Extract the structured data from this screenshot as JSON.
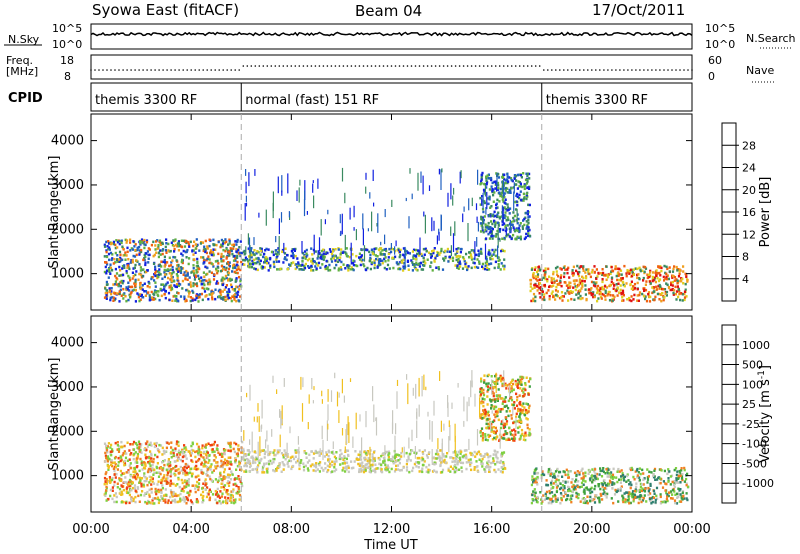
{
  "header": {
    "left": "Syowa East (fitACF)",
    "center": "Beam 04",
    "right": "17/Oct/2011"
  },
  "strips": {
    "nsky": {
      "label": "N.Sky",
      "top_tick": "10^5",
      "bottom_tick": "10^0",
      "right_label": "N.Search",
      "right_top": "10^5",
      "right_bottom": "10^0"
    },
    "freq": {
      "label_line1": "Freq.",
      "label_line2": "[MHz]",
      "top_tick": "18",
      "bottom_tick": "8",
      "right_label": "Nave",
      "right_top": "60",
      "right_bottom": "0"
    },
    "cpid": {
      "label": "CPID",
      "segments": [
        {
          "name": "themis 3300 RF",
          "start_hour": 0
        },
        {
          "name": "normal (fast) 151 RF",
          "start_hour": 6
        },
        {
          "name": "themis 3300 RF",
          "start_hour": 18
        }
      ]
    }
  },
  "chart_data": [
    {
      "type": "heatmap",
      "title": "",
      "xlabel": "Time UT",
      "ylabel": "Slant Range [km]",
      "x_ticks": [
        "00:00",
        "04:00",
        "08:00",
        "12:00",
        "16:00",
        "20:00",
        "00:00"
      ],
      "xlim": [
        0,
        24
      ],
      "ylim": [
        180,
        4600
      ],
      "y_ticks": [
        1000,
        2000,
        3000,
        4000
      ],
      "colorbar": {
        "label": "Power [dB]",
        "ticks": [
          "4",
          "8",
          "12",
          "16",
          "20",
          "24",
          "28"
        ],
        "colors": [
          "#1020e0",
          "#2060c0",
          "#3a8a60",
          "#60b040",
          "#e0d020",
          "#f0a020",
          "#f06010",
          "#e01010"
        ]
      },
      "mode_change_hours": [
        6,
        18
      ],
      "features": [
        {
          "hours": [
            0.5,
            6.0
          ],
          "range_km": [
            400,
            1800
          ],
          "dominant": "orange-green"
        },
        {
          "hours": [
            6.0,
            16.5
          ],
          "range_km": [
            1100,
            1600
          ],
          "dominant": "blue-green"
        },
        {
          "hours": [
            15.5,
            17.5
          ],
          "range_km": [
            1800,
            3300
          ],
          "dominant": "green"
        },
        {
          "hours": [
            17.5,
            23.8
          ],
          "range_km": [
            400,
            1200
          ],
          "dominant": "orange-red"
        }
      ]
    },
    {
      "type": "heatmap",
      "title": "",
      "xlabel": "Time UT",
      "ylabel": "Slant Range [km]",
      "x_ticks": [
        "00:00",
        "04:00",
        "08:00",
        "12:00",
        "16:00",
        "20:00",
        "00:00"
      ],
      "xlim": [
        0,
        24
      ],
      "ylim": [
        180,
        4600
      ],
      "y_ticks": [
        1000,
        2000,
        3000,
        4000
      ],
      "colorbar": {
        "label": "Velocity [m s^-1]",
        "ticks": [
          "1000",
          "500",
          "100",
          "25",
          "-25",
          "-100",
          "-500",
          "-1000"
        ],
        "colors": [
          "#1030d0",
          "#2f7f6f",
          "#3ea040",
          "#7fd040",
          "#c8c8c0",
          "#f0c020",
          "#f08020",
          "#f04010",
          "#e00000"
        ]
      },
      "mode_change_hours": [
        6,
        18
      ],
      "features": [
        {
          "hours": [
            0.5,
            6.0
          ],
          "range_km": [
            400,
            1800
          ],
          "dominant": "orange"
        },
        {
          "hours": [
            6.0,
            16.5
          ],
          "range_km": [
            1100,
            1600
          ],
          "dominant": "grey"
        },
        {
          "hours": [
            15.5,
            17.5
          ],
          "range_km": [
            1800,
            3300
          ],
          "dominant": "orange-red"
        },
        {
          "hours": [
            17.5,
            23.8
          ],
          "range_km": [
            400,
            1200
          ],
          "dominant": "green"
        }
      ]
    }
  ]
}
